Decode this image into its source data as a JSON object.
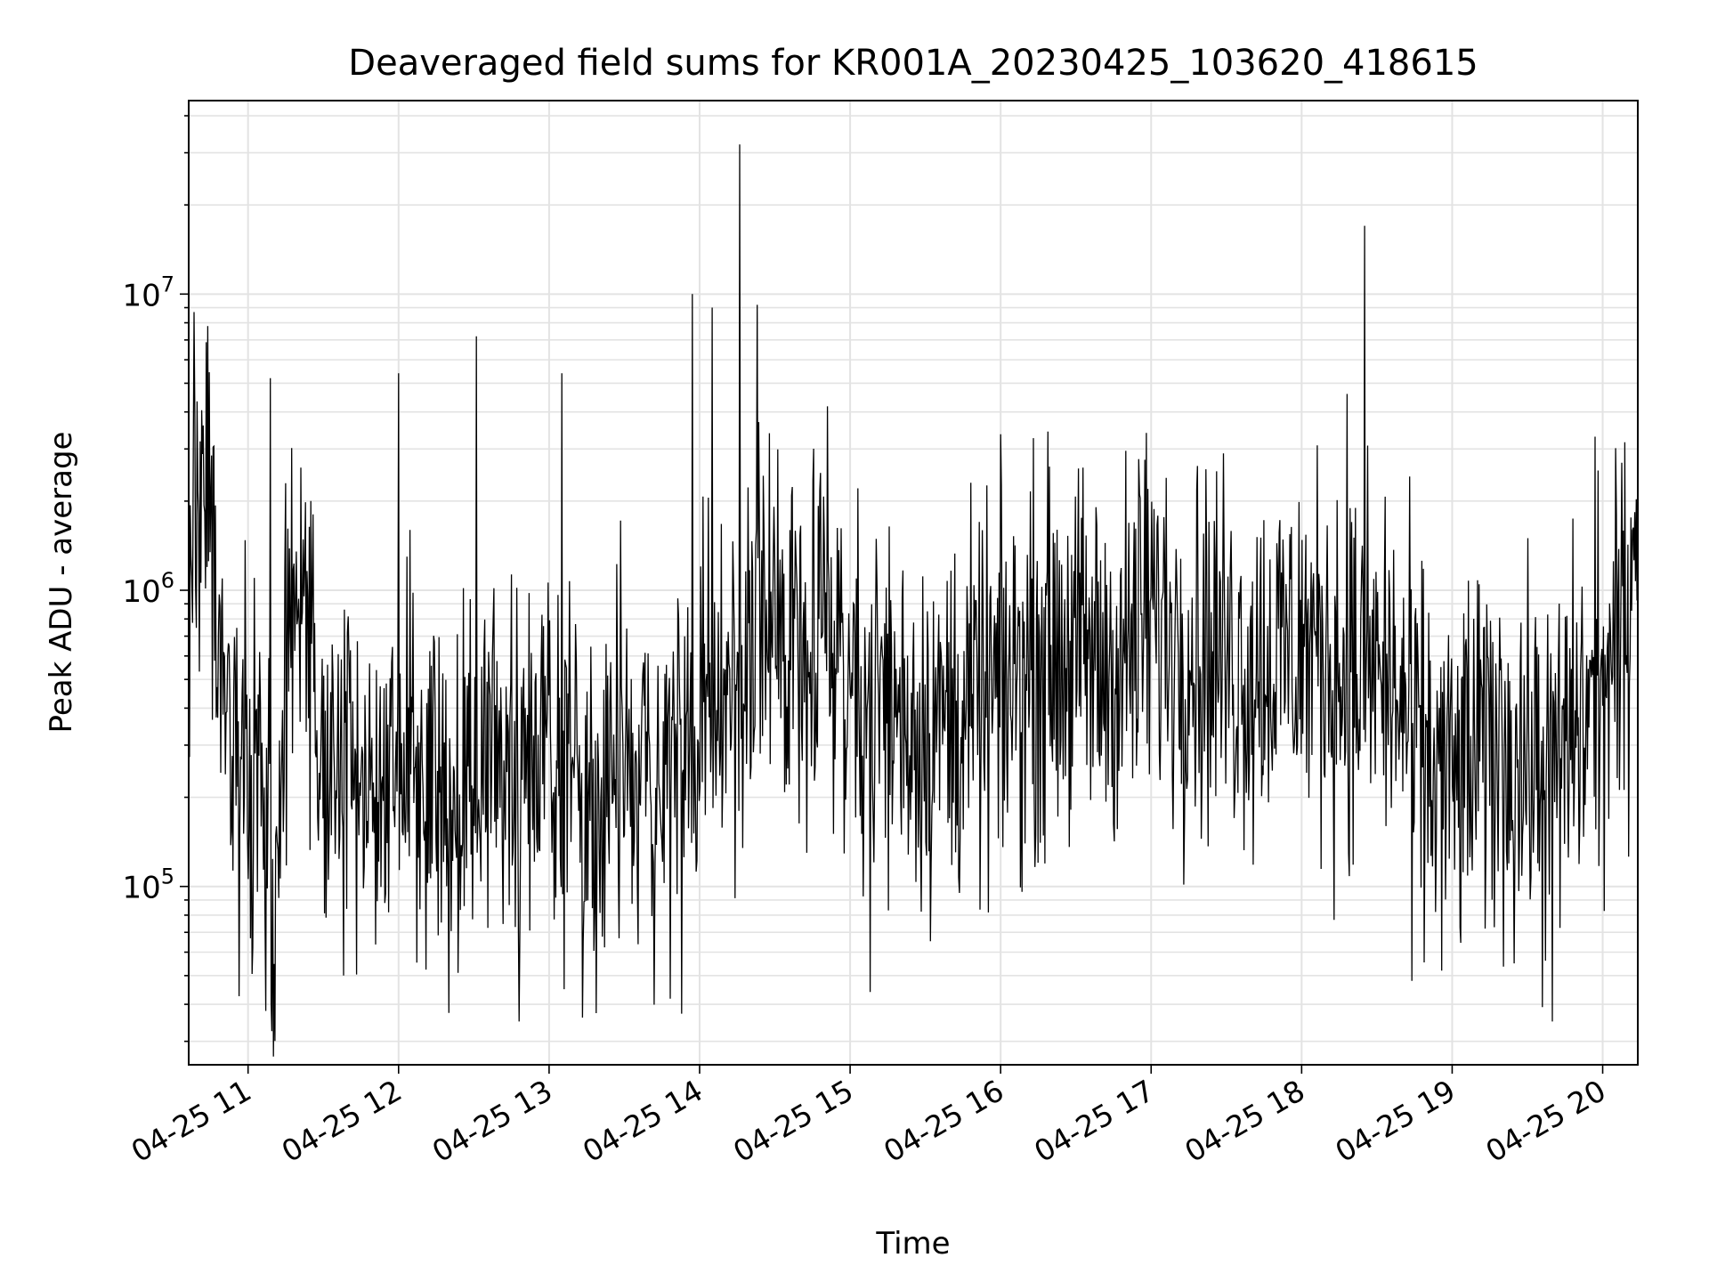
{
  "chart_data": {
    "type": "line",
    "title": "Deaveraged field sums for KR001A_20230425_103620_418615",
    "xlabel": "Time",
    "ylabel": "Peak ADU - average",
    "yscale": "log",
    "ylim": [
      25000,
      45000000
    ],
    "xlim": [
      "2023-04-25 10:36:20",
      "2023-04-25 20:14:00"
    ],
    "grid": true,
    "line_color": "#000000",
    "x_ticks": [
      "04-25 11",
      "04-25 12",
      "04-25 13",
      "04-25 14",
      "04-25 15",
      "04-25 16",
      "04-25 17",
      "04-25 18",
      "04-25 19",
      "04-25 20"
    ],
    "y_ticks": [
      {
        "base": "10",
        "exp": "5",
        "value": 100000
      },
      {
        "base": "10",
        "exp": "6",
        "value": 1000000
      },
      {
        "base": "10",
        "exp": "7",
        "value": 10000000
      }
    ],
    "series": [
      {
        "x": [
          "2023-04-25 10:36",
          "2023-04-25 10:40",
          "2023-04-25 10:45",
          "2023-04-25 10:50",
          "2023-04-25 10:55",
          "2023-04-25 11:00",
          "2023-04-25 11:05",
          "2023-04-25 11:10",
          "2023-04-25 11:15",
          "2023-04-25 11:20",
          "2023-04-25 11:30",
          "2023-04-25 11:40",
          "2023-04-25 11:50",
          "2023-04-25 12:00",
          "2023-04-25 12:10",
          "2023-04-25 12:20",
          "2023-04-25 12:30",
          "2023-04-25 12:40",
          "2023-04-25 12:50",
          "2023-04-25 13:00",
          "2023-04-25 13:10",
          "2023-04-25 13:20",
          "2023-04-25 13:30",
          "2023-04-25 13:40",
          "2023-04-25 13:50",
          "2023-04-25 14:00",
          "2023-04-25 14:10",
          "2023-04-25 14:20",
          "2023-04-25 14:30",
          "2023-04-25 14:40",
          "2023-04-25 14:50",
          "2023-04-25 15:00",
          "2023-04-25 15:10",
          "2023-04-25 15:20",
          "2023-04-25 15:30",
          "2023-04-25 15:40",
          "2023-04-25 15:50",
          "2023-04-25 16:00",
          "2023-04-25 16:10",
          "2023-04-25 16:20",
          "2023-04-25 16:30",
          "2023-04-25 16:40",
          "2023-04-25 16:50",
          "2023-04-25 17:00",
          "2023-04-25 17:10",
          "2023-04-25 17:20",
          "2023-04-25 17:30",
          "2023-04-25 17:40",
          "2023-04-25 17:50",
          "2023-04-25 18:00",
          "2023-04-25 18:10",
          "2023-04-25 18:20",
          "2023-04-25 18:30",
          "2023-04-25 18:40",
          "2023-04-25 18:50",
          "2023-04-25 19:00",
          "2023-04-25 19:10",
          "2023-04-25 19:20",
          "2023-04-25 19:30",
          "2023-04-25 19:40",
          "2023-04-25 19:50",
          "2023-04-25 20:00",
          "2023-04-25 20:05",
          "2023-04-25 20:10",
          "2023-04-25 20:14"
        ],
        "y": [
          500000,
          3500000,
          1500000,
          300000,
          250000,
          200000,
          350000,
          60000,
          400000,
          1200000,
          250000,
          220000,
          200000,
          280000,
          250000,
          200000,
          220000,
          280000,
          300000,
          320000,
          250000,
          200000,
          230000,
          220000,
          250000,
          300000,
          450000,
          600000,
          700000,
          800000,
          900000,
          500000,
          450000,
          380000,
          350000,
          370000,
          400000,
          450000,
          550000,
          650000,
          600000,
          550000,
          600000,
          800000,
          700000,
          650000,
          600000,
          550000,
          600000,
          650000,
          600000,
          500000,
          550000,
          400000,
          250000,
          220000,
          280000,
          300000,
          250000,
          230000,
          350000,
          450000,
          550000,
          800000,
          2800000
        ]
      }
    ]
  }
}
